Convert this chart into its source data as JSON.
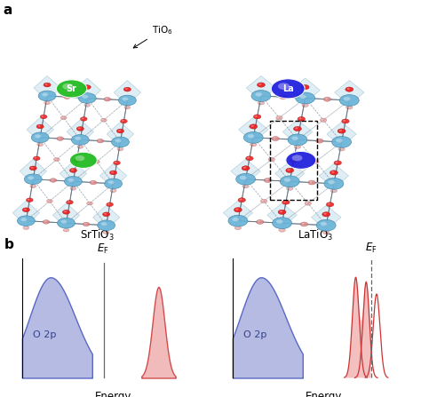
{
  "fig_width": 4.74,
  "fig_height": 4.47,
  "dpi": 100,
  "background": "#ffffff",
  "color_sr": "#22bb22",
  "color_sr_dark": "#117711",
  "color_la": "#2222dd",
  "color_la_dark": "#111199",
  "color_ti": "#6ab4d8",
  "color_ti_dark": "#4488aa",
  "color_ti_light": "#a8d8ee",
  "color_o": "#ee2222",
  "color_o_dark": "#991111",
  "color_o_faded": "#dd8888",
  "color_o_faded_dark": "#aa5555",
  "color_face": "#b8d8e8",
  "color_face_edge": "#7aaabb",
  "color_bond_solid": "#556677",
  "color_bond_dash": "#778899",
  "color_dos_blue_fill": "#aab0e0",
  "color_dos_blue_edge": "#4455bb",
  "color_dos_red_fill": "#f0b0b0",
  "color_dos_red_edge": "#cc3333",
  "label_sr": "Sr",
  "label_la": "La",
  "label_tio6": "TiO$_6$",
  "label_srtio3": "SrTiO$_3$",
  "label_latio3": "LaTiO$_3$",
  "label_o2p": "O 2p",
  "label_energy": "Energy",
  "label_ef": "$E_{\\rm F}$"
}
